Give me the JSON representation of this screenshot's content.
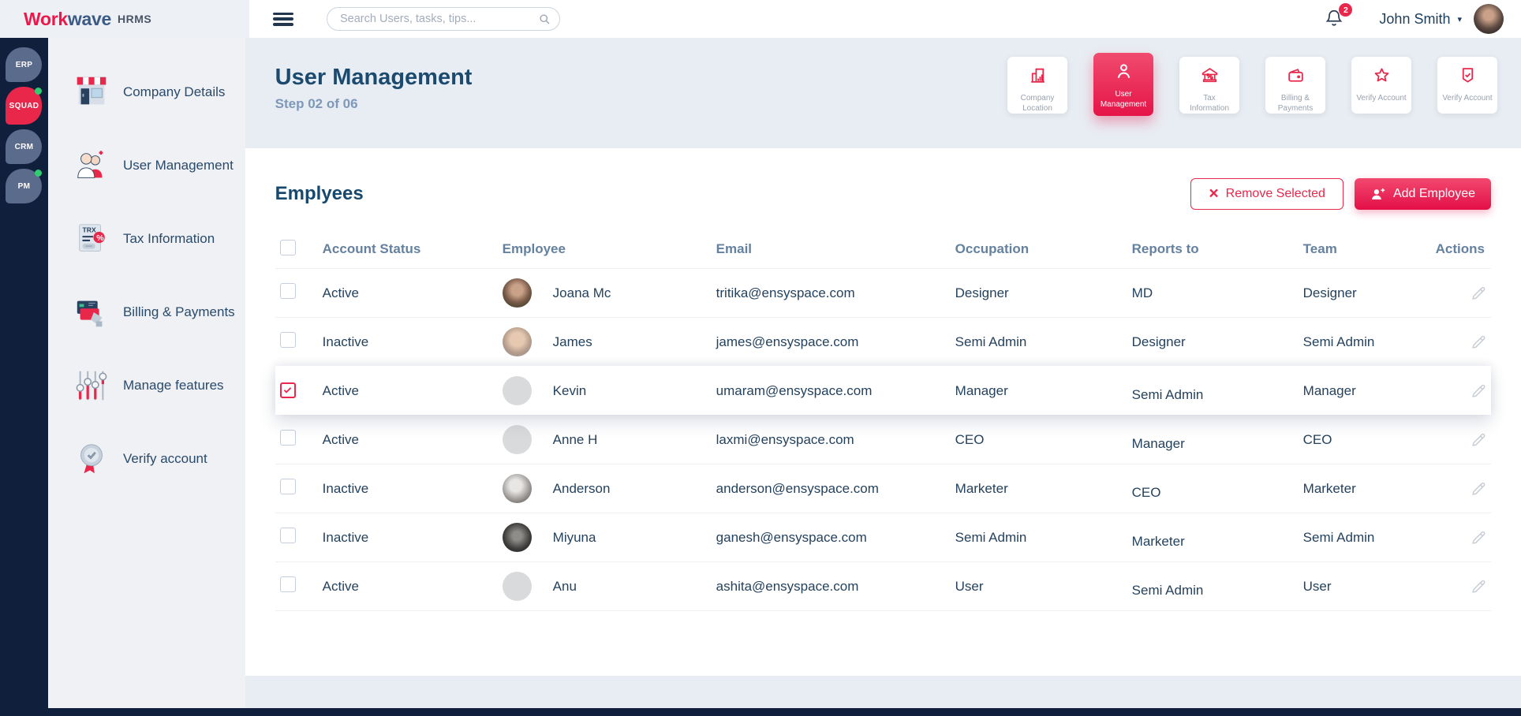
{
  "brand": {
    "word1": "Work",
    "word2": "wave",
    "suffix": "HRMS"
  },
  "topbar": {
    "search_placeholder": "Search Users, tasks, tips...",
    "notification_count": "2",
    "user_name": "John Smith"
  },
  "rail": [
    {
      "label": "ERP",
      "active": false,
      "dot": false
    },
    {
      "label": "SQUAD",
      "active": true,
      "dot": true
    },
    {
      "label": "CRM",
      "active": false,
      "dot": false
    },
    {
      "label": "PM",
      "active": false,
      "dot": true
    }
  ],
  "sidebar": [
    {
      "label": "Company Details",
      "icon": "storefront-icon"
    },
    {
      "label": "User Management",
      "icon": "users-icon"
    },
    {
      "label": "Tax Information",
      "icon": "tax-calculator-icon"
    },
    {
      "label": "Billing & Payments",
      "icon": "credit-card-icon"
    },
    {
      "label": "Manage features",
      "icon": "sliders-icon"
    },
    {
      "label": "Verify account",
      "icon": "shield-badge-icon"
    }
  ],
  "page": {
    "title": "User Management",
    "subtitle": "Step 02 of 06"
  },
  "steps": [
    {
      "label": "Company Location",
      "icon": "building-icon",
      "active": false
    },
    {
      "label": "User Management",
      "icon": "person-icon",
      "active": true
    },
    {
      "label": "Tax Information",
      "icon": "bank-percent-icon",
      "active": false
    },
    {
      "label": "Billing & Payments",
      "icon": "wallet-icon",
      "active": false
    },
    {
      "label": "Verify Account",
      "icon": "star-icon",
      "active": false
    },
    {
      "label": "Verify Account",
      "icon": "shield-check-icon",
      "active": false
    }
  ],
  "employees": {
    "title": "Emplyees",
    "remove_button": "Remove Selected",
    "add_button": "Add Employee",
    "columns": [
      "Account Status",
      "Employee",
      "Email",
      "Occupation",
      "Reports to",
      "Team",
      "Actions"
    ],
    "rows": [
      {
        "status": "Active",
        "name": "Joana Mc",
        "email": "tritika@ensyspace.com",
        "occupation": "Designer",
        "reports_to": "MD",
        "team": "Designer",
        "checked": false,
        "selected": false,
        "avatar": "photo-woman"
      },
      {
        "status": "Inactive",
        "name": "James",
        "email": "james@ensyspace.com",
        "occupation": "Semi Admin",
        "reports_to": "Designer",
        "team": "Semi Admin",
        "checked": false,
        "selected": false,
        "avatar": "photo-man-glasses"
      },
      {
        "status": "Active",
        "name": "Kevin",
        "email": "umaram@ensyspace.com",
        "occupation": "Manager",
        "reports_to": "Semi Admin",
        "team": "Manager",
        "checked": true,
        "selected": true,
        "avatar": "placeholder"
      },
      {
        "status": "Active",
        "name": "Anne H",
        "email": "laxmi@ensyspace.com",
        "occupation": "CEO",
        "reports_to": "Manager",
        "team": "CEO",
        "checked": false,
        "selected": false,
        "avatar": "placeholder"
      },
      {
        "status": "Inactive",
        "name": "Anderson",
        "email": "anderson@ensyspace.com",
        "occupation": "Marketer",
        "reports_to": "CEO",
        "team": "Marketer",
        "checked": false,
        "selected": false,
        "avatar": "photo-man-bw"
      },
      {
        "status": "Inactive",
        "name": "Miyuna",
        "email": "ganesh@ensyspace.com",
        "occupation": "Semi Admin",
        "reports_to": "Marketer",
        "team": "Semi Admin",
        "checked": false,
        "selected": false,
        "avatar": "photo-man-shades"
      },
      {
        "status": "Active",
        "name": "Anu",
        "email": "ashita@ensyspace.com",
        "occupation": "User",
        "reports_to": "Semi Admin",
        "team": "User",
        "checked": false,
        "selected": false,
        "avatar": "placeholder"
      }
    ]
  },
  "colors": {
    "accent": "#e8274b",
    "rail_background": "#101f3c",
    "title_text": "#1b4a6e"
  }
}
